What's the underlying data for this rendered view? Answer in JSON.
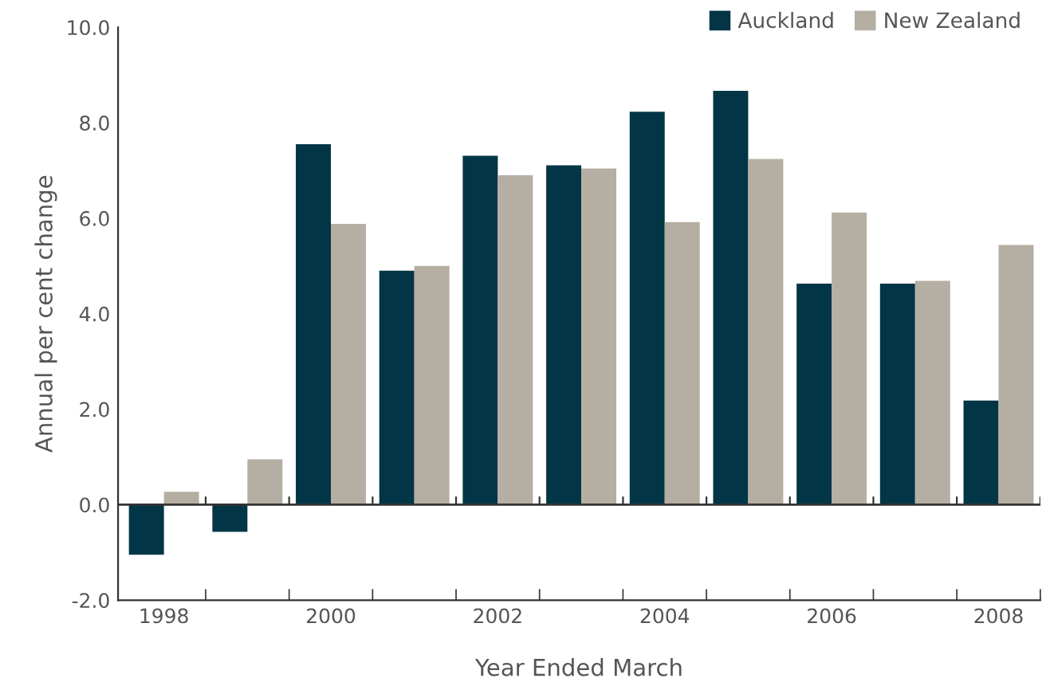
{
  "chart_data": {
    "type": "bar",
    "xlabel": "Year Ended March",
    "ylabel": "Annual per cent change",
    "categories": [
      "1998",
      null,
      "2000",
      null,
      "2002",
      null,
      "2004",
      null,
      "2006",
      null,
      "2008"
    ],
    "series": [
      {
        "name": "Auckland",
        "color": "#023545",
        "values": [
          -1.05,
          -0.57,
          7.55,
          4.9,
          7.31,
          7.11,
          8.23,
          8.67,
          4.63,
          4.63,
          2.18
        ]
      },
      {
        "name": "New Zealand",
        "color": "#b5aea2",
        "values": [
          0.27,
          0.95,
          5.88,
          5.0,
          6.9,
          7.04,
          5.92,
          7.24,
          6.12,
          4.69,
          5.44
        ]
      }
    ],
    "ylim": [
      -2,
      10
    ],
    "yticks": [
      {
        "value": -2,
        "label": "-2.0"
      },
      {
        "value": 0,
        "label": "0.0"
      },
      {
        "value": 2,
        "label": "2.0"
      },
      {
        "value": 4,
        "label": "4.0"
      },
      {
        "value": 6,
        "label": "6.0"
      },
      {
        "value": 8,
        "label": "8.0"
      },
      {
        "value": 10,
        "label": "10.0"
      }
    ],
    "ref_lines": [
      {
        "axis": "y",
        "value": 0,
        "color": "#333333"
      }
    ],
    "grid": false,
    "legend": "top right"
  }
}
